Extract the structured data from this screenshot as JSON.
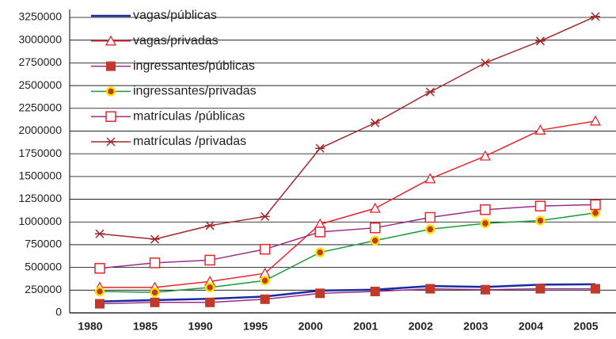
{
  "chart_data": {
    "type": "line",
    "categories": [
      "1980",
      "1985",
      "1990",
      "1995",
      "2000",
      "2001",
      "2002",
      "2003",
      "2004",
      "2005"
    ],
    "ylim": [
      0,
      3250000
    ],
    "yticks": [
      0,
      250000,
      500000,
      750000,
      1000000,
      1250000,
      1500000,
      1750000,
      2000000,
      2250000,
      2500000,
      2750000,
      3000000,
      3250000
    ],
    "grid": true,
    "legend": "top-left",
    "series": [
      {
        "name": "vagas/públicas",
        "color": "#1a2aa0",
        "marker": "none",
        "marker_color": "#1a2aa0",
        "values": [
          125000,
          140000,
          155000,
          180000,
          245000,
          255000,
          295000,
          285000,
          310000,
          315000
        ]
      },
      {
        "name": "vagas/privadas",
        "color": "#e8262a",
        "marker": "triangle",
        "marker_color": "#e8262a",
        "values": [
          280000,
          280000,
          345000,
          435000,
          975000,
          1150000,
          1475000,
          1725000,
          2010000,
          2110000
        ]
      },
      {
        "name": "ingressantes/públicas",
        "color": "#9b2d8a",
        "marker": "square",
        "marker_color": "#c0392b",
        "values": [
          100000,
          115000,
          115000,
          150000,
          215000,
          235000,
          265000,
          255000,
          265000,
          265000
        ]
      },
      {
        "name": "ingressantes/privadas",
        "color": "#1a9a3a",
        "marker": "circle",
        "marker_color": "#c0392b",
        "values": [
          235000,
          225000,
          280000,
          355000,
          665000,
          795000,
          920000,
          985000,
          1015000,
          1100000
        ]
      },
      {
        "name": "matrículas /públicas",
        "color": "#9b2d8a",
        "marker": "square-open",
        "marker_color": "#e8262a",
        "values": [
          490000,
          550000,
          580000,
          700000,
          890000,
          935000,
          1050000,
          1135000,
          1175000,
          1190000
        ]
      },
      {
        "name": "matrículas /privadas",
        "color": "#a0282a",
        "marker": "star",
        "marker_color": "#a0282a",
        "values": [
          870000,
          810000,
          960000,
          1060000,
          1810000,
          2090000,
          2430000,
          2750000,
          2990000,
          3260000
        ]
      }
    ]
  }
}
